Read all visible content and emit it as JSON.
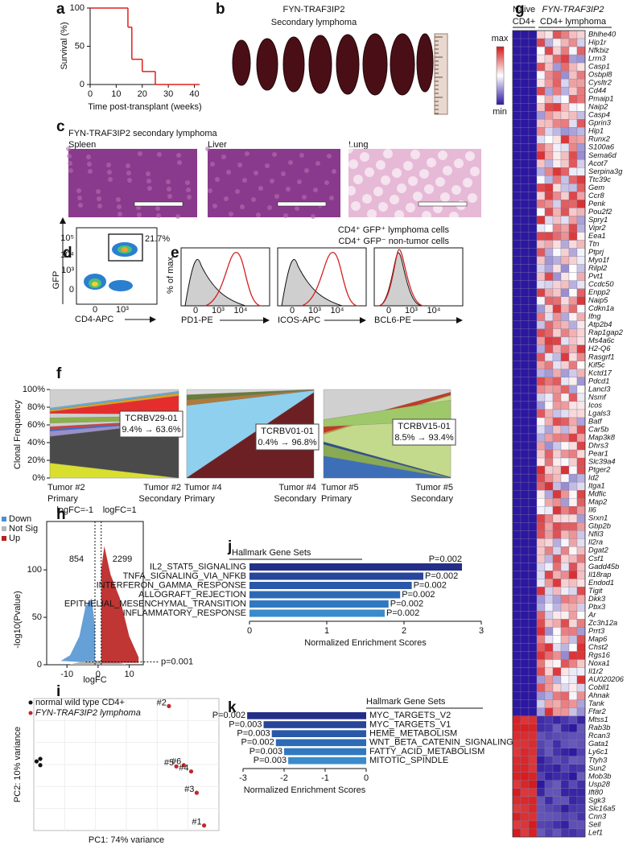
{
  "panel_labels": [
    "a",
    "b",
    "c",
    "d",
    "e",
    "f",
    "g",
    "h",
    "i",
    "j",
    "k"
  ],
  "chart_data": [
    {
      "type": "step",
      "y_label": "Survival (%)",
      "x_label": "Time post-transplant (weeks)",
      "x": [
        0,
        14.5,
        16,
        20,
        25,
        42
      ],
      "values": [
        100,
        75,
        33,
        17,
        0,
        0
      ],
      "color": "#e0201b",
      "xlim": [
        0,
        42
      ],
      "ylim": [
        0,
        100
      ],
      "xticks": [
        0,
        10,
        20,
        30,
        40
      ],
      "yticks": [
        0,
        50,
        100
      ]
    },
    {
      "type": "clonal",
      "y_label": "Clonal Frequency",
      "ylim": [
        0,
        100
      ],
      "yticks": [
        {
          "value": 0,
          "label": "0%"
        },
        {
          "value": 20,
          "label": "20%"
        },
        {
          "value": 40,
          "label": "40%"
        },
        {
          "value": 60,
          "label": "60%"
        },
        {
          "value": 80,
          "label": "80%"
        },
        {
          "value": 100,
          "label": "100%"
        }
      ],
      "categories": [
        [
          "Tumor #2",
          "Primary"
        ],
        [
          "Tumor #2",
          "Secondary"
        ],
        [
          "Tumor #4",
          "Primary"
        ],
        [
          "Tumor #4",
          "Secondary"
        ],
        [
          "Tumor #5",
          "Primary"
        ],
        [
          "Tumor #5",
          "Secondary"
        ]
      ],
      "annotations": [
        {
          "clone": "TCRBV29-01",
          "change": "9.4% → 63.6%"
        },
        {
          "clone": "TCRBV01-01",
          "change": "0.4% → 96.8%"
        },
        {
          "clone": "TCRBV15-01",
          "change": "8.5% → 93.4%"
        }
      ]
    },
    {
      "type": "volcano",
      "y_label": "-log10(Pvalue)",
      "x_label": "logFC",
      "xlim": [
        -16.5,
        14.5
      ],
      "ylim": [
        0,
        151
      ],
      "xticks": [
        -10,
        0,
        10
      ],
      "yticks": [
        0,
        50,
        100
      ],
      "groups": [
        {
          "name": "Down",
          "color": "#4a8fd0"
        },
        {
          "name": "Not Sig",
          "color": "#b5b5b5"
        },
        {
          "name": "Up",
          "color": "#b8201f"
        }
      ],
      "down_count": 854,
      "up_count": 2299,
      "vlines": [
        {
          "value": -1,
          "label": "logFC=-1"
        },
        {
          "value": 1,
          "label": "logFC=1"
        }
      ],
      "hline": {
        "value": 3,
        "label": "p=0.001"
      }
    },
    {
      "type": "scatter",
      "x_label": "PC1: 74% variance",
      "y_label": "PC2: 10% variance",
      "xlim": [
        0,
        100
      ],
      "ylim": [
        0,
        105
      ],
      "series": [
        {
          "name": "normal wild type CD4+",
          "color": "#111111",
          "x": [
            1.5,
            3.5,
            3.5
          ],
          "values": [
            55,
            57,
            52
          ]
        },
        {
          "name": "FYN-TRAF3IP2 lymphoma",
          "color": "#c0282c",
          "x": [
            73,
            81,
            77,
            85,
            88,
            92
          ],
          "values": [
            99,
            52,
            51,
            47,
            30,
            4
          ],
          "point_labels": [
            "#2",
            "#6",
            "#5",
            "#4",
            "#3",
            "#1"
          ]
        }
      ]
    },
    {
      "type": "barh",
      "title": "Hallmark Gene Sets",
      "x_label": "Normalized Enrichment Scores",
      "categories": [
        "IL2_STAT5_SIGNALING",
        "TNFA_SIGNALING_VIA_NFKB",
        "INTERFERON_GAMMA_RESPONSE",
        "ALLOGRAFT_REJECTION",
        "EPITHELIAL_MESENCHYMAL_TRANSITION",
        "INFLAMMATORY_RESPONSE"
      ],
      "values": [
        2.75,
        2.25,
        2.1,
        1.95,
        1.8,
        1.75
      ],
      "p_labels": [
        "P=0.002",
        "P=0.002",
        "P=0.002",
        "P=0.002",
        "P=0.002",
        "P=0.002"
      ],
      "colors": [
        "#232f86",
        "#27459a",
        "#2a58a8",
        "#2d6ab6",
        "#3079c0",
        "#3a8bcb"
      ],
      "xlim": [
        0,
        3
      ],
      "xticks": [
        0,
        1,
        2,
        3
      ]
    },
    {
      "type": "barh",
      "title": "Hallmark Gene Sets",
      "x_label": "Normalized Enrichment Scores",
      "categories": [
        "MYC_TARGETS_V2",
        "MYC_TARGETS_V1",
        "HEME_METABOLISM",
        "WNT_BETA_CATENIN_SIGNALING",
        "FATTY_ACID_METABOLISM",
        "MITOTIC_SPINDLE"
      ],
      "values": [
        -2.9,
        -2.5,
        -2.3,
        -2.2,
        -2.0,
        -1.9
      ],
      "p_labels": [
        "P=0.002",
        "P=0.003",
        "P=0.003",
        "P=0.002",
        "P=0.003",
        "P=0.003"
      ],
      "colors": [
        "#232f86",
        "#27459a",
        "#2a58a8",
        "#2d6ab6",
        "#3079c0",
        "#3a8bcb"
      ],
      "xlim": [
        -3,
        0
      ],
      "xticks": [
        -3,
        -2,
        -1,
        0
      ]
    }
  ],
  "panel_b": {
    "title": "FYN-TRAF3IP2",
    "subtitle": "Secondary lymphoma"
  },
  "panel_c": {
    "title": "FYN-TRAF3IP2 secondary lymphoma",
    "tissues": [
      "Spleen",
      "Liver",
      "Lung"
    ]
  },
  "panel_d": {
    "gate": "21.7%",
    "y_label": "GFP",
    "x_label": "CD4-APC",
    "y_ticks": [
      "10⁵",
      "10⁴",
      "10³",
      "0"
    ],
    "x_ticks": [
      "0",
      "10³"
    ]
  },
  "panel_e": {
    "legend": [
      "CD4⁺ GFP⁺ lymphoma cells",
      "CD4⁺ GFP⁻ non-tumor cells"
    ],
    "y_label": "% of max",
    "x_labels": [
      "PD1-PE",
      "ICOS-APC",
      "BCL6-PE"
    ],
    "x_ticks": [
      [
        "0",
        "10³",
        "10⁴"
      ],
      [
        "0",
        "10³",
        "10⁴"
      ],
      [
        "0",
        "10³",
        "10⁴"
      ]
    ]
  },
  "panel_g": {
    "column_labels": [
      [
        "Naive",
        "CD4+"
      ],
      [
        "FYN-TRAF3IP2",
        "CD4+ lymphoma"
      ]
    ],
    "scale": [
      "max",
      "min"
    ],
    "genes_up": [
      "Bhlhe40",
      "Hip1r",
      "Nfkbiz",
      "Lrrn3",
      "Casp1",
      "Osbpl8",
      "Cysltr2",
      "Cd44",
      "Pmaip1",
      "Naip2",
      "Casp4",
      "Gprin3",
      "Hip1",
      "Runx2",
      "S100a6",
      "Sema6d",
      "Acot7",
      "Serpina3g",
      "Ttc39c",
      "Gem",
      "Ccr8",
      "Penk",
      "Pou2f2",
      "Spry1",
      "Vipr2",
      "Eea1",
      "Ttn",
      "Ptprj",
      "Myo1f",
      "Rilpl2",
      "Pvt1",
      "Ccdc50",
      "Enpp2",
      "Naip5",
      "Cdkn1a",
      "Ifng",
      "Atp2b4",
      "Rap1gap2",
      "Ms4a6c",
      "H2-Q6",
      "Rasgrf1",
      "Kif5c",
      "Kctd17",
      "Pdcd1",
      "Lancl3",
      "Nsmf",
      "Icos",
      "Lgals3",
      "Batf",
      "Car5b",
      "Map3k8",
      "Dhrs3",
      "Pear1",
      "Slc39a4",
      "Ptger2",
      "Id2",
      "Itga1",
      "Mdfic",
      "Map2",
      "Il6",
      "Srxn1",
      "Gbp2b",
      "Nfil3",
      "Il2ra",
      "Dgat2",
      "Csf1",
      "Gadd45b",
      "Il18rap",
      "Endod1",
      "Tigit",
      "Dkk3",
      "Pbx3",
      "Ar",
      "Zc3h12a",
      "Prrt3",
      "Map6",
      "Chst2",
      "Rgs16",
      "Noxa1",
      "Il1r2",
      "AU020206",
      "Cobll1",
      "Ahnak",
      "Tank",
      "Ffar2"
    ],
    "genes_down": [
      "Mtss1",
      "Rab3b",
      "Rcan3",
      "Gata1",
      "Ly6c1",
      "Ttyh3",
      "Sun2",
      "Mob3b",
      "Usp28",
      "Ift80",
      "Sgk3",
      "Slc16a5",
      "Cnn3",
      "Sell",
      "Lef1"
    ]
  }
}
